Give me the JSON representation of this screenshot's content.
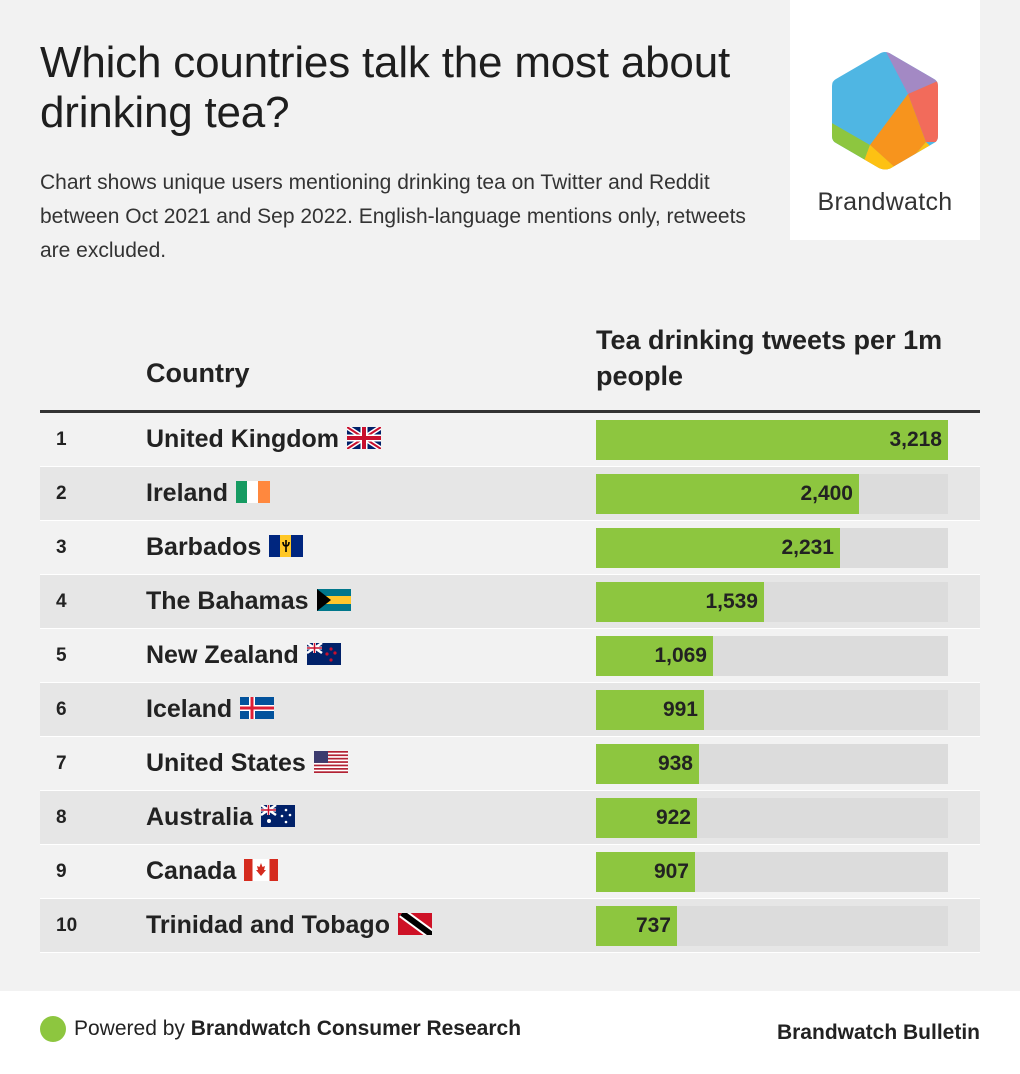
{
  "title": "Which countries talk the most about drinking tea?",
  "subtitle": "Chart shows unique users mentioning drinking tea on Twitter and Reddit between Oct 2021 and Sep 2022. English-language mentions only, retweets are excluded.",
  "logo": {
    "wordmark": "Brandwatch",
    "icon": "brandwatch-hexagon-logo"
  },
  "table_header": {
    "country": "Country",
    "metric": "Tea drinking tweets per 1m people"
  },
  "colors": {
    "bar": "#8dc63f",
    "track": "#dcdcdc",
    "row_alt": "#e6e6e6",
    "background": "#f2f2f2"
  },
  "chart_data": {
    "type": "bar",
    "orientation": "horizontal",
    "value_label": "Tea drinking tweets per 1m people",
    "xlim": [
      0,
      3218
    ],
    "rows": [
      {
        "rank": "1",
        "country": "United Kingdom",
        "flag": "gb-flag-icon",
        "value": 3218,
        "label": "3,218"
      },
      {
        "rank": "2",
        "country": "Ireland",
        "flag": "ie-flag-icon",
        "value": 2400,
        "label": "2,400"
      },
      {
        "rank": "3",
        "country": "Barbados",
        "flag": "bb-flag-icon",
        "value": 2231,
        "label": "2,231"
      },
      {
        "rank": "4",
        "country": "The Bahamas",
        "flag": "bs-flag-icon",
        "value": 1539,
        "label": "1,539"
      },
      {
        "rank": "5",
        "country": "New Zealand",
        "flag": "nz-flag-icon",
        "value": 1069,
        "label": "1,069"
      },
      {
        "rank": "6",
        "country": "Iceland",
        "flag": "is-flag-icon",
        "value": 991,
        "label": "991"
      },
      {
        "rank": "7",
        "country": "United States",
        "flag": "us-flag-icon",
        "value": 938,
        "label": "938"
      },
      {
        "rank": "8",
        "country": "Australia",
        "flag": "au-flag-icon",
        "value": 922,
        "label": "922"
      },
      {
        "rank": "9",
        "country": "Canada",
        "flag": "ca-flag-icon",
        "value": 907,
        "label": "907"
      },
      {
        "rank": "10",
        "country": "Trinidad and Tobago",
        "flag": "tt-flag-icon",
        "value": 737,
        "label": "737"
      }
    ]
  },
  "footer": {
    "powered_prefix": "Powered by",
    "powered_brand": "Brandwatch Consumer Research",
    "bulletin": "Brandwatch Bulletin"
  }
}
